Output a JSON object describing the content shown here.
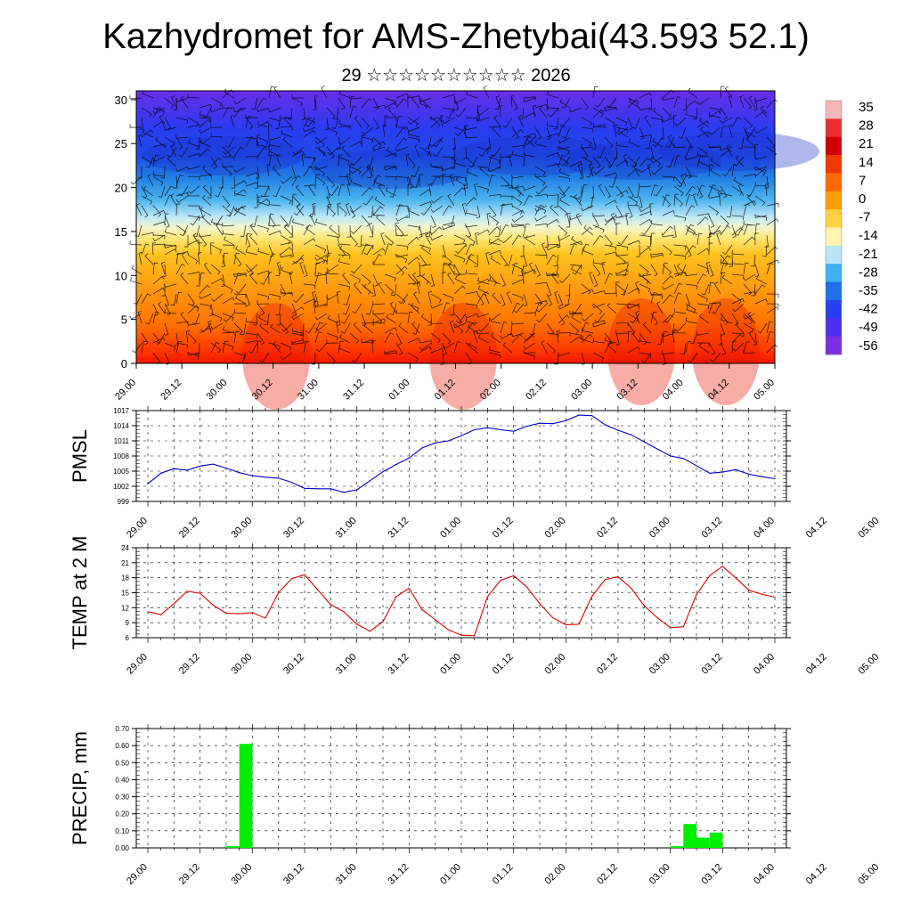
{
  "title": "Kazhydromet for AMS-Zhetybai(43.593 52.1)",
  "subtitle": "29 ☆☆☆☆☆☆☆☆☆☆ 2026",
  "x_tick_labels": [
    "29.00",
    "29.12",
    "30.00",
    "30.12",
    "31.00",
    "31.12",
    "01.00",
    "01.12",
    "02.00",
    "02.12",
    "03.00",
    "03.12",
    "04.00",
    "04.12",
    "05.00"
  ],
  "colorbar": {
    "labels": [
      "35",
      "28",
      "21",
      "14",
      "7",
      "0",
      "-7",
      "-14",
      "-21",
      "-28",
      "-35",
      "-42",
      "-49",
      "-56"
    ],
    "colors": [
      "#f4b6b6",
      "#e83030",
      "#d00000",
      "#ee3a00",
      "#ff6a00",
      "#ff9c00",
      "#ffd040",
      "#fff4b0",
      "#b8e4f8",
      "#40b0ee",
      "#2070e8",
      "#2840f0",
      "#5030f0",
      "#7a2ee0"
    ]
  },
  "chart_data": [
    {
      "type": "heatmap",
      "name": "vertical cross-section temperature with wind barbs",
      "x_tick_labels": [
        "29.00",
        "29.12",
        "30.00",
        "30.12",
        "31.00",
        "31.12",
        "01.00",
        "01.12",
        "02.00",
        "02.12",
        "03.00",
        "03.12",
        "04.00",
        "04.12",
        "05.00"
      ],
      "y_tick_labels": [
        "0",
        "5",
        "10",
        "15",
        "20",
        "25",
        "30"
      ],
      "ylim": [
        0,
        31
      ],
      "zlim": [
        -56,
        35
      ],
      "warm_layer_top_approx": 15,
      "cold_core_level_approx": 23
    },
    {
      "type": "line",
      "name": "PMSL",
      "ylabel": "PMSL",
      "color": "#0000cc",
      "ylim": [
        999,
        1017
      ],
      "y_tick_labels": [
        "1017",
        "1014",
        "1011",
        "1008",
        "1005",
        "1002",
        "999"
      ],
      "x_tick_labels": [
        "29.00",
        "29.12",
        "30.00",
        "30.12",
        "31.00",
        "31.12",
        "01.00",
        "01.12",
        "02.00",
        "02.12",
        "03.00",
        "03.12",
        "04.00",
        "04.12",
        "05.00"
      ],
      "hours": [
        0,
        3,
        6,
        9,
        12,
        15,
        18,
        21,
        24,
        27,
        30,
        33,
        36,
        39,
        42,
        45,
        48,
        51,
        54,
        57,
        60,
        63,
        66,
        69,
        72,
        75,
        78,
        81,
        84,
        87,
        90,
        93,
        96,
        99,
        102,
        105,
        108,
        111,
        114,
        117,
        120,
        123,
        126,
        129,
        132,
        135,
        138,
        141,
        144
      ],
      "values": [
        1002.5,
        1004.6,
        1005.5,
        1005.2,
        1006.0,
        1006.4,
        1005.6,
        1004.7,
        1004.1,
        1003.8,
        1003.6,
        1002.8,
        1001.6,
        1001.5,
        1001.5,
        1000.8,
        1001.3,
        1003.1,
        1004.9,
        1006.3,
        1007.6,
        1009.6,
        1010.6,
        1011.0,
        1012.0,
        1013.2,
        1013.6,
        1013.2,
        1012.9,
        1013.9,
        1014.5,
        1014.4,
        1015.0,
        1016.1,
        1016.0,
        1014.2,
        1013.1,
        1012.2,
        1010.8,
        1009.4,
        1008.0,
        1007.5,
        1006.1,
        1004.6,
        1004.8,
        1005.3,
        1004.4,
        1003.9,
        1003.5
      ]
    },
    {
      "type": "line",
      "name": "TEMP at 2 M",
      "ylabel": "TEMP at 2 M",
      "color": "#dd0000",
      "ylim": [
        6,
        24
      ],
      "y_tick_labels": [
        "24",
        "21",
        "18",
        "15",
        "12",
        "9",
        "6"
      ],
      "x_tick_labels": [
        "29.00",
        "29.12",
        "30.00",
        "30.12",
        "31.00",
        "31.12",
        "01.00",
        "01.12",
        "02.00",
        "02.12",
        "03.00",
        "03.12",
        "04.00",
        "04.12",
        "05.00"
      ],
      "hours": [
        0,
        3,
        6,
        9,
        12,
        15,
        18,
        21,
        24,
        27,
        30,
        33,
        36,
        39,
        42,
        45,
        48,
        51,
        54,
        57,
        60,
        63,
        66,
        69,
        72,
        75,
        78,
        81,
        84,
        87,
        90,
        93,
        96,
        99,
        102,
        105,
        108,
        111,
        114,
        117,
        120,
        123,
        126,
        129,
        132,
        135,
        138,
        141,
        144
      ],
      "values": [
        11.2,
        10.6,
        12.8,
        15.3,
        14.9,
        12.5,
        10.9,
        10.8,
        11.0,
        9.9,
        15.0,
        17.8,
        18.6,
        15.6,
        12.6,
        11.2,
        8.7,
        7.3,
        9.2,
        14.2,
        15.9,
        11.6,
        9.6,
        7.6,
        6.5,
        6.4,
        14.2,
        17.5,
        18.4,
        16.2,
        12.8,
        10.0,
        8.6,
        8.7,
        14.3,
        17.6,
        18.2,
        15.9,
        12.4,
        10.0,
        8.0,
        8.2,
        14.6,
        18.4,
        20.3,
        18.0,
        15.5,
        14.7,
        14.1
      ]
    },
    {
      "type": "bar",
      "name": "PRECIP, mm",
      "ylabel": "PRECIP, mm",
      "color": "#00ee00",
      "ylim": [
        0,
        0.7
      ],
      "y_tick_labels": [
        "0.70",
        "0.60",
        "0.50",
        "0.40",
        "0.30",
        "0.20",
        "0.10",
        "0.00"
      ],
      "x_tick_labels": [
        "29.00",
        "29.12",
        "30.00",
        "30.12",
        "31.00",
        "31.12",
        "01.00",
        "01.12",
        "02.00",
        "02.12",
        "03.00",
        "03.12",
        "04.00",
        "04.12",
        "05.00"
      ],
      "bars": [
        {
          "start_hour": 18,
          "end_hour": 21,
          "value": 0.01
        },
        {
          "start_hour": 21,
          "end_hour": 24,
          "value": 0.61
        },
        {
          "start_hour": 120,
          "end_hour": 123,
          "value": 0.01
        },
        {
          "start_hour": 123,
          "end_hour": 126,
          "value": 0.14
        },
        {
          "start_hour": 126,
          "end_hour": 129,
          "value": 0.06
        },
        {
          "start_hour": 129,
          "end_hour": 132,
          "value": 0.09
        }
      ]
    }
  ]
}
